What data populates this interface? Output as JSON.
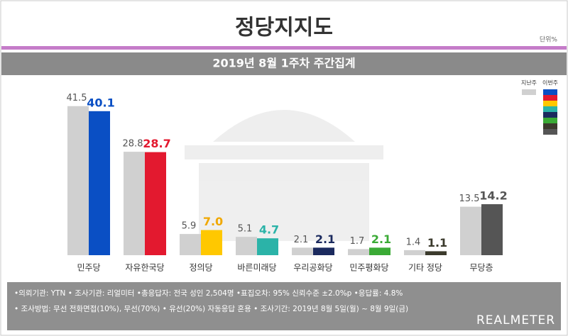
{
  "chart_data": {
    "type": "bar",
    "title": "정당지지도",
    "unit": "단위%",
    "subtitle": "2019년 8월 1주차 주간집계",
    "categories": [
      "민주당",
      "자유한국당",
      "정의당",
      "바른미래당",
      "우리공화당",
      "민주평화당",
      "기타 정당",
      "무당층"
    ],
    "series": [
      {
        "name": "지난주",
        "color": "#d0d0d0",
        "label_color": "#555555",
        "values": [
          41.5,
          28.8,
          5.9,
          5.1,
          2.1,
          1.7,
          1.4,
          13.5
        ]
      },
      {
        "name": "이번주",
        "colors": [
          "#0a4fc4",
          "#e3192f",
          "#ffc800",
          "#2bb3a8",
          "#1b2a5e",
          "#3aaa35",
          "#3b3a2c",
          "#555555"
        ],
        "values": [
          40.1,
          28.7,
          7,
          4.7,
          2.1,
          2.1,
          1.1,
          14.2
        ],
        "value_labels": [
          "40.1",
          "28.7",
          "7.0",
          "4.7",
          "2.1",
          "2.1",
          "1.1",
          "14.2"
        ]
      }
    ],
    "ylim": [
      0,
      45
    ],
    "notes": [
      "•의뢰기관: YTN • 조사기관: 리얼미터 •총응답자: 전국 성인 2,504명 •표집오차: 95% 신뢰수준 ±2.0%p •응답률: 4.8%",
      "• 조사방법: 무선 전화면접(10%), 무선(70%) • 유선(20%) 자동응답 혼용 • 조사기간: 2019년 8월 5일(월) ~ 8월 9일(금)"
    ],
    "brand": "REALMETER"
  }
}
